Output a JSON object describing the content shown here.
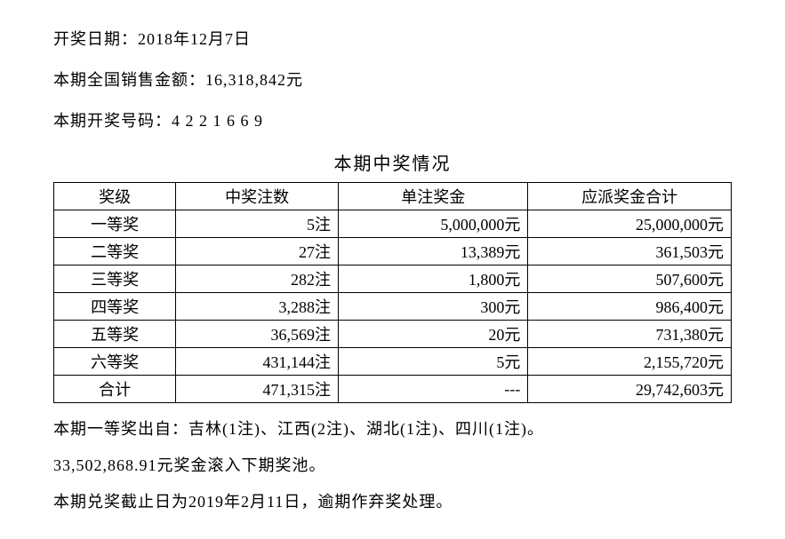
{
  "header": {
    "draw_date_label": "开奖日期：",
    "draw_date_value": "2018年12月7日",
    "sales_label": "本期全国销售金额：",
    "sales_value": "16,318,842元",
    "numbers_label": "本期开奖号码：",
    "numbers_value": "4 2 2 1 6 6 9"
  },
  "table": {
    "title": "本期中奖情况",
    "columns": [
      "奖级",
      "中奖注数",
      "单注奖金",
      "应派奖金合计"
    ],
    "rows": [
      {
        "level": "一等奖",
        "count": "5注",
        "unit_prize": "5,000,000元",
        "total_prize": "25,000,000元"
      },
      {
        "level": "二等奖",
        "count": "27注",
        "unit_prize": "13,389元",
        "total_prize": "361,503元"
      },
      {
        "level": "三等奖",
        "count": "282注",
        "unit_prize": "1,800元",
        "total_prize": "507,600元"
      },
      {
        "level": "四等奖",
        "count": "3,288注",
        "unit_prize": "300元",
        "total_prize": "986,400元"
      },
      {
        "level": "五等奖",
        "count": "36,569注",
        "unit_prize": "20元",
        "total_prize": "731,380元"
      },
      {
        "level": "六等奖",
        "count": "431,144注",
        "unit_prize": "5元",
        "total_prize": "2,155,720元"
      },
      {
        "level": "合计",
        "count": "471,315注",
        "unit_prize": "---",
        "total_prize": "29,742,603元"
      }
    ]
  },
  "footer": {
    "first_prize_origin": "本期一等奖出自：吉林(1注)、江西(2注)、湖北(1注)、四川(1注)。",
    "rollover": "33,502,868.91元奖金滚入下期奖池。",
    "deadline": "本期兑奖截止日为2019年2月11日，逾期作弃奖处理。"
  },
  "styling": {
    "font_family": "SimSun",
    "body_font_size": 18,
    "title_font_size": 20,
    "text_color": "#000000",
    "background_color": "#ffffff",
    "border_color": "#000000",
    "column_widths_pct": [
      18,
      24,
      28,
      30
    ],
    "column_align": [
      "center",
      "right",
      "right",
      "right"
    ]
  }
}
